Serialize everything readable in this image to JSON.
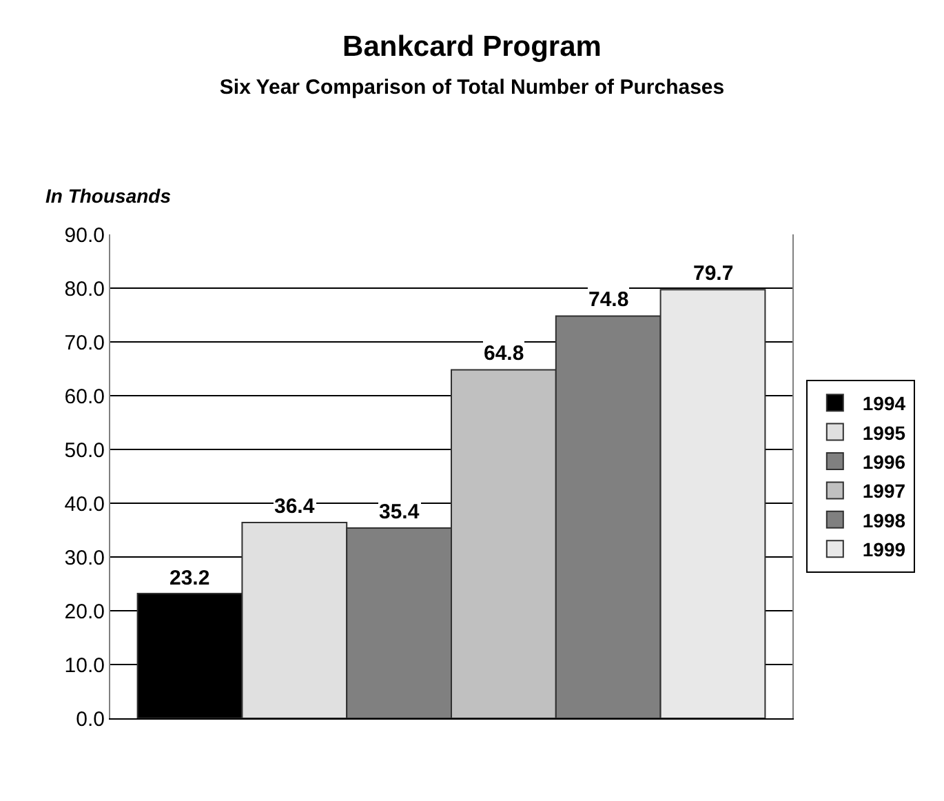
{
  "chart_data": {
    "type": "bar",
    "title": "Bankcard Program",
    "subtitle": "Six Year Comparison of Total Number of Purchases",
    "ylabel": "In Thousands",
    "categories": [
      null
    ],
    "series": [
      {
        "name": "1994",
        "color": "#000000",
        "values": [
          23.2
        ]
      },
      {
        "name": "1995",
        "color": "#e0e0e0",
        "values": [
          36.4
        ]
      },
      {
        "name": "1996",
        "color": "#808080",
        "values": [
          35.4
        ]
      },
      {
        "name": "1997",
        "color": "#c0c0c0",
        "values": [
          64.8
        ]
      },
      {
        "name": "1998",
        "color": "#808080",
        "values": [
          74.8
        ]
      },
      {
        "name": "1999",
        "color": "#e8e8e8",
        "values": [
          79.7
        ]
      }
    ],
    "ylim": [
      0,
      90
    ],
    "yticks": [
      {
        "value": 0,
        "label": "0.0"
      },
      {
        "value": 10,
        "label": "10.0"
      },
      {
        "value": 20,
        "label": "20.0"
      },
      {
        "value": 30,
        "label": "30.0"
      },
      {
        "value": 40,
        "label": "40.0"
      },
      {
        "value": 50,
        "label": "50.0"
      },
      {
        "value": 60,
        "label": "60.0"
      },
      {
        "value": 70,
        "label": "70.0"
      },
      {
        "value": 80,
        "label": "80.0"
      },
      {
        "value": 90,
        "label": "90.0"
      }
    ],
    "grid": "y",
    "legend": "right",
    "tick_labels": "y",
    "data_labels": true
  }
}
